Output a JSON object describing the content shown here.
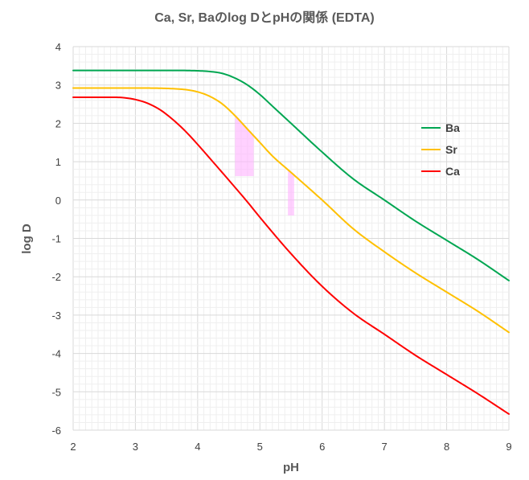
{
  "chart_data": {
    "type": "line",
    "title": "Ca, Sr, Baのlog DとpHの関係 (EDTA)",
    "xlabel": "pH",
    "ylabel": "log D",
    "xlim": [
      2,
      9
    ],
    "ylim": [
      -6,
      4
    ],
    "xticks": [
      "2",
      "3",
      "4",
      "5",
      "6",
      "7",
      "8",
      "9"
    ],
    "yticks": [
      "4",
      "3",
      "2",
      "1",
      "0",
      "-1",
      "-2",
      "-3",
      "-4",
      "-5",
      "-6"
    ],
    "grid": true,
    "legend_position": "right",
    "series": [
      {
        "name": "Ba",
        "color": "#00a651",
        "x": [
          2,
          3,
          3.5,
          4,
          4.2,
          4.4,
          4.6,
          4.8,
          5.0,
          5.2,
          5.5,
          6.0,
          6.5,
          7.0,
          7.5,
          8.0,
          8.5,
          9.0
        ],
        "y": [
          3.38,
          3.38,
          3.38,
          3.37,
          3.35,
          3.3,
          3.18,
          3.0,
          2.75,
          2.45,
          2.0,
          1.25,
          0.55,
          0.0,
          -0.55,
          -1.05,
          -1.55,
          -2.1
        ]
      },
      {
        "name": "Sr",
        "color": "#ffc000",
        "x": [
          2,
          3,
          3.5,
          3.8,
          4.0,
          4.2,
          4.4,
          4.6,
          4.8,
          5.0,
          5.2,
          5.5,
          6.0,
          6.5,
          7.0,
          7.5,
          8.0,
          8.5,
          9.0
        ],
        "y": [
          2.92,
          2.92,
          2.91,
          2.88,
          2.82,
          2.7,
          2.5,
          2.2,
          1.85,
          1.5,
          1.15,
          0.72,
          0.0,
          -0.75,
          -1.35,
          -1.9,
          -2.4,
          -2.9,
          -3.45
        ],
        "highlights": [
          {
            "x_from": 4.6,
            "x_to": 4.9,
            "color": "#ffb3ff"
          },
          {
            "x_from": 5.45,
            "x_to": 5.55,
            "color": "#ffb3ff"
          }
        ]
      },
      {
        "name": "Ca",
        "color": "#ff0000",
        "x": [
          2,
          2.6,
          2.8,
          3.0,
          3.2,
          3.4,
          3.6,
          3.8,
          4.0,
          4.2,
          4.5,
          4.8,
          5.0,
          5.5,
          6.0,
          6.5,
          7.0,
          7.5,
          8.0,
          8.5,
          9.0
        ],
        "y": [
          2.68,
          2.68,
          2.67,
          2.62,
          2.52,
          2.35,
          2.1,
          1.8,
          1.45,
          1.08,
          0.52,
          -0.05,
          -0.45,
          -1.4,
          -2.25,
          -2.95,
          -3.5,
          -4.05,
          -4.55,
          -5.05,
          -5.58
        ]
      }
    ]
  }
}
